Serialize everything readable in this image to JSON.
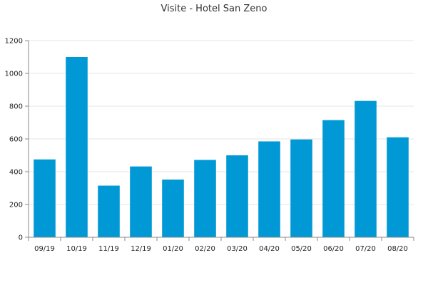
{
  "chart_data": {
    "type": "bar",
    "title": "Visite - Hotel San Zeno",
    "xlabel": "",
    "ylabel": "",
    "categories": [
      "09/19",
      "10/19",
      "11/19",
      "12/19",
      "01/20",
      "02/20",
      "03/20",
      "04/20",
      "05/20",
      "06/20",
      "07/20",
      "08/20"
    ],
    "values": [
      475,
      1100,
      315,
      432,
      352,
      472,
      500,
      585,
      597,
      715,
      832,
      610
    ],
    "ylim": [
      0,
      1200
    ],
    "yticks": [
      0,
      200,
      400,
      600,
      800,
      1000,
      1200
    ],
    "ytick_labels": [
      "0",
      "200",
      "400",
      "600",
      "800",
      "1000",
      "1200"
    ],
    "grid": true,
    "legend": "none",
    "bar_color": "#0099d6"
  }
}
